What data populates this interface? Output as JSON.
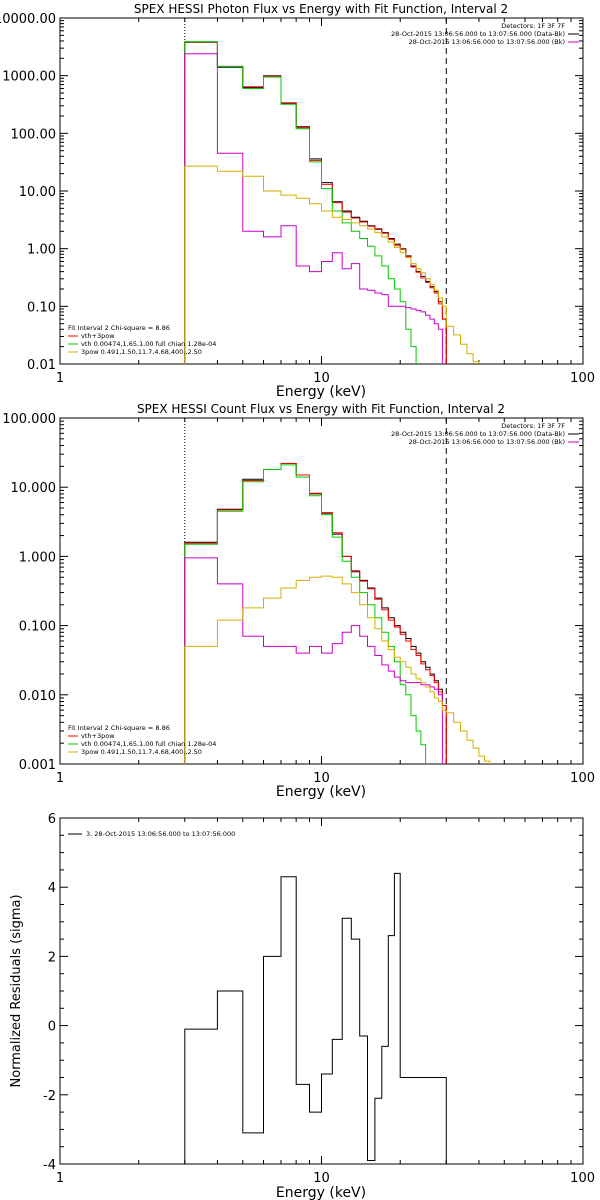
{
  "chart_data": [
    {
      "type": "line",
      "title": "SPEX HESSI Photon Flux vs Energy with Fit Function, Interval 2",
      "xlabel": "Energy (keV)",
      "ylabel": "",
      "xscale": "log",
      "yscale": "log",
      "xlim": [
        1,
        100
      ],
      "ylim": [
        0.01,
        10000
      ],
      "x_ticks": [
        {
          "v": 1,
          "label": "1"
        },
        {
          "v": 10,
          "label": "10"
        },
        {
          "v": 100,
          "label": "100"
        }
      ],
      "y_ticks": [
        {
          "v": 10000,
          "label": "10000.00"
        },
        {
          "v": 1000,
          "label": "1000.00"
        },
        {
          "v": 100,
          "label": "100.00"
        },
        {
          "v": 10,
          "label": "10.00"
        },
        {
          "v": 1,
          "label": "1.00"
        },
        {
          "v": 0.1,
          "label": "0.10"
        },
        {
          "v": 0.01,
          "label": "0.01"
        }
      ],
      "vlines": [
        {
          "x": 3,
          "style": "dotted",
          "color": "#000000"
        },
        {
          "x": 30,
          "style": "dashed",
          "color": "#000000"
        }
      ],
      "info_lines": [
        {
          "text": "Detectors: 1F 3F 7F",
          "color": "#000000"
        },
        {
          "text": "28-Oct-2015 13:06:56.000 to 13:07:56.000 (Data-Bk)",
          "color": "#000000"
        },
        {
          "text": "28-Oct-2015 13:06:56.000 to 13:07:56.000 (Bk)",
          "color": "#cc00cc"
        }
      ],
      "legend": [
        {
          "text": "Fit Interval  2    Chi-square = 8.86",
          "color": "#000000"
        },
        {
          "text": "vth+3pow",
          "color": "#ff0000"
        },
        {
          "text": "vth 0.00474,1.65,1.00   full chian 1.28e-04",
          "color": "#00cc00"
        },
        {
          "text": "3pow 0.491,1.50,11.7,4.68,400.,2.50",
          "color": "#d4b000"
        }
      ],
      "edges": [
        3,
        4,
        5,
        6,
        7,
        8,
        9,
        10,
        11,
        12,
        13,
        14,
        15,
        16,
        17,
        18,
        19,
        20,
        21,
        22,
        23,
        24,
        25,
        26,
        27,
        28,
        29,
        30,
        32,
        34,
        36,
        38,
        40,
        42,
        44
      ],
      "series": [
        {
          "name": "Data-Bk",
          "color": "#000000",
          "values": [
            3800,
            1400,
            620,
            1000,
            330,
            130,
            36,
            14,
            6.5,
            4.5,
            3.5,
            3.0,
            2.5,
            2.2,
            1.9,
            1.5,
            1.2,
            1.0,
            0.75,
            0.5,
            0.4,
            0.33,
            0.27,
            0.22,
            0.18,
            0.12,
            0.06
          ]
        },
        {
          "name": "vth+3pow",
          "color": "#ff0000",
          "values": [
            3850,
            1450,
            640,
            980,
            340,
            125,
            34,
            13,
            6.3,
            4.3,
            3.4,
            2.9,
            2.45,
            2.15,
            1.85,
            1.45,
            1.15,
            0.98,
            0.72,
            0.48,
            0.39,
            0.31,
            0.26,
            0.21,
            0.17,
            0.11,
            0.06
          ]
        },
        {
          "name": "vth",
          "color": "#00cc00",
          "values": [
            3900,
            1450,
            600,
            950,
            320,
            120,
            32,
            11,
            4.5,
            2.8,
            2.0,
            1.5,
            1.1,
            0.75,
            0.5,
            0.3,
            0.2,
            0.12,
            0.04,
            0.02,
            0.0095
          ]
        },
        {
          "name": "Bk",
          "color": "#cc00cc",
          "values": [
            2400,
            45,
            2.0,
            1.6,
            2.5,
            0.5,
            0.4,
            0.6,
            0.85,
            0.45,
            0.55,
            0.2,
            0.19,
            0.17,
            0.16,
            0.1,
            0.1,
            0.1,
            0.095,
            0.09,
            0.085,
            0.08,
            0.07,
            0.06,
            0.05,
            0.04,
            0.0095
          ]
        },
        {
          "name": "3pow",
          "color": "#d4b000",
          "values": [
            27,
            22,
            18,
            10,
            8.5,
            7.5,
            6.0,
            4.5,
            3.5,
            3.2,
            2.8,
            2.5,
            2.2,
            1.9,
            1.6,
            1.3,
            1.05,
            0.85,
            0.7,
            0.55,
            0.45,
            0.38,
            0.3,
            0.24,
            0.19,
            0.14,
            0.1,
            0.045,
            0.032,
            0.022,
            0.015,
            0.011,
            0.0095,
            0.0095
          ]
        }
      ]
    },
    {
      "type": "line",
      "title": "SPEX HESSI Count Flux vs Energy with Fit Function, Interval 2",
      "xlabel": "Energy (keV)",
      "ylabel": "",
      "xscale": "log",
      "yscale": "log",
      "xlim": [
        1,
        100
      ],
      "ylim": [
        0.001,
        100
      ],
      "x_ticks": [
        {
          "v": 1,
          "label": "1"
        },
        {
          "v": 10,
          "label": "10"
        },
        {
          "v": 100,
          "label": "100"
        }
      ],
      "y_ticks": [
        {
          "v": 100,
          "label": "100.000"
        },
        {
          "v": 10,
          "label": "10.000"
        },
        {
          "v": 1,
          "label": "1.000"
        },
        {
          "v": 0.1,
          "label": "0.100"
        },
        {
          "v": 0.01,
          "label": "0.010"
        },
        {
          "v": 0.001,
          "label": "0.001"
        }
      ],
      "vlines": [
        {
          "x": 3,
          "style": "dotted",
          "color": "#000000"
        },
        {
          "x": 30,
          "style": "dashed",
          "color": "#000000"
        }
      ],
      "info_lines": [
        {
          "text": "Detectors: 1F 3F 7F",
          "color": "#000000"
        },
        {
          "text": "28-Oct-2015 13:06:56.000 to 13:07:56.000 (Data-Bk)",
          "color": "#000000"
        },
        {
          "text": "28-Oct-2015 13:06:56.000 to 13:07:56.000 (Bk)",
          "color": "#cc00cc"
        }
      ],
      "legend": [
        {
          "text": "Fit Interval  2    Chi-square = 8.86",
          "color": "#000000"
        },
        {
          "text": "vth+3pow",
          "color": "#ff0000"
        },
        {
          "text": "vth 0.00474,1.65,1.00   full chian 1.28e-04",
          "color": "#00cc00"
        },
        {
          "text": "3pow 0.491,1.50,11.7,4.68,400.,2.50",
          "color": "#d4b000"
        }
      ],
      "edges": [
        3,
        4,
        5,
        6,
        7,
        8,
        9,
        10,
        11,
        12,
        13,
        14,
        15,
        16,
        17,
        18,
        19,
        20,
        21,
        22,
        23,
        24,
        25,
        26,
        27,
        28,
        29,
        30,
        32,
        34,
        36,
        38,
        40,
        42,
        44,
        48
      ],
      "series": [
        {
          "name": "Data-Bk",
          "color": "#000000",
          "values": [
            1.6,
            4.8,
            13,
            18,
            22,
            15,
            8,
            4.2,
            2.1,
            1.0,
            0.6,
            0.45,
            0.35,
            0.25,
            0.18,
            0.13,
            0.1,
            0.08,
            0.065,
            0.05,
            0.04,
            0.03,
            0.025,
            0.02,
            0.016,
            0.012,
            0.007
          ]
        },
        {
          "name": "vth+3pow",
          "color": "#ff0000",
          "values": [
            1.55,
            4.7,
            12.5,
            18,
            22,
            15,
            8.2,
            4.3,
            2.2,
            1.0,
            0.62,
            0.44,
            0.34,
            0.24,
            0.17,
            0.12,
            0.095,
            0.075,
            0.06,
            0.045,
            0.037,
            0.028,
            0.023,
            0.019,
            0.015,
            0.011,
            0.007
          ]
        },
        {
          "name": "vth",
          "color": "#00cc00",
          "values": [
            1.5,
            4.5,
            12,
            18,
            21,
            14,
            7.5,
            4.0,
            1.9,
            0.85,
            0.5,
            0.3,
            0.2,
            0.13,
            0.08,
            0.05,
            0.03,
            0.014,
            0.01,
            0.005,
            0.003,
            0.0019,
            0.0009
          ]
        },
        {
          "name": "Bk",
          "color": "#cc00cc",
          "values": [
            0.95,
            0.4,
            0.07,
            0.05,
            0.05,
            0.04,
            0.05,
            0.04,
            0.055,
            0.08,
            0.1,
            0.07,
            0.05,
            0.037,
            0.027,
            0.022,
            0.018,
            0.016,
            0.015,
            0.015,
            0.015,
            0.014,
            0.014,
            0.013,
            0.012,
            0.01,
            0.0009
          ]
        },
        {
          "name": "3pow",
          "color": "#d4b000",
          "values": [
            0.05,
            0.12,
            0.18,
            0.25,
            0.35,
            0.45,
            0.5,
            0.52,
            0.5,
            0.4,
            0.3,
            0.2,
            0.13,
            0.09,
            0.06,
            0.045,
            0.035,
            0.03,
            0.025,
            0.02,
            0.017,
            0.015,
            0.013,
            0.011,
            0.009,
            0.008,
            0.006,
            0.0055,
            0.004,
            0.003,
            0.0022,
            0.0017,
            0.0013,
            0.0011,
            0.0009
          ]
        }
      ]
    },
    {
      "type": "line",
      "title": "",
      "xlabel": "Energy (keV)",
      "ylabel": "Normalized Residuals (sigma)",
      "xscale": "log",
      "yscale": "linear",
      "xlim": [
        1,
        100
      ],
      "ylim": [
        -4,
        6
      ],
      "x_ticks": [
        {
          "v": 1,
          "label": "1"
        },
        {
          "v": 10,
          "label": "10"
        },
        {
          "v": 100,
          "label": "100"
        }
      ],
      "y_ticks": [
        {
          "v": 6,
          "label": "6"
        },
        {
          "v": 4,
          "label": "4"
        },
        {
          "v": 2,
          "label": "2"
        },
        {
          "v": 0,
          "label": "0"
        },
        {
          "v": -2,
          "label": "-2"
        },
        {
          "v": -4,
          "label": "-4"
        }
      ],
      "legend": [
        {
          "text": "3. 28-Oct-2015 13:06:56.000 to 13:07:56.000",
          "color": "#000000"
        }
      ],
      "edges": [
        3,
        4,
        5,
        6,
        7,
        8,
        9,
        10,
        11,
        12,
        13,
        14,
        15,
        16,
        17,
        18,
        19,
        20,
        21,
        22,
        23,
        24,
        25,
        26,
        27,
        28,
        29,
        30
      ],
      "series": [
        {
          "name": "Residuals",
          "color": "#000000",
          "values": [
            -0.1,
            1.0,
            -3.1,
            2.0,
            4.3,
            -1.7,
            -2.5,
            -1.4,
            -0.4,
            3.1,
            2.5,
            -0.3,
            -3.9,
            -2.1,
            -0.6,
            2.6,
            4.4,
            -1.5,
            -1.5,
            -1.5,
            -1.5,
            -1.5,
            -1.5,
            -1.5,
            -1.5,
            -1.5,
            -1.5
          ]
        }
      ]
    }
  ]
}
